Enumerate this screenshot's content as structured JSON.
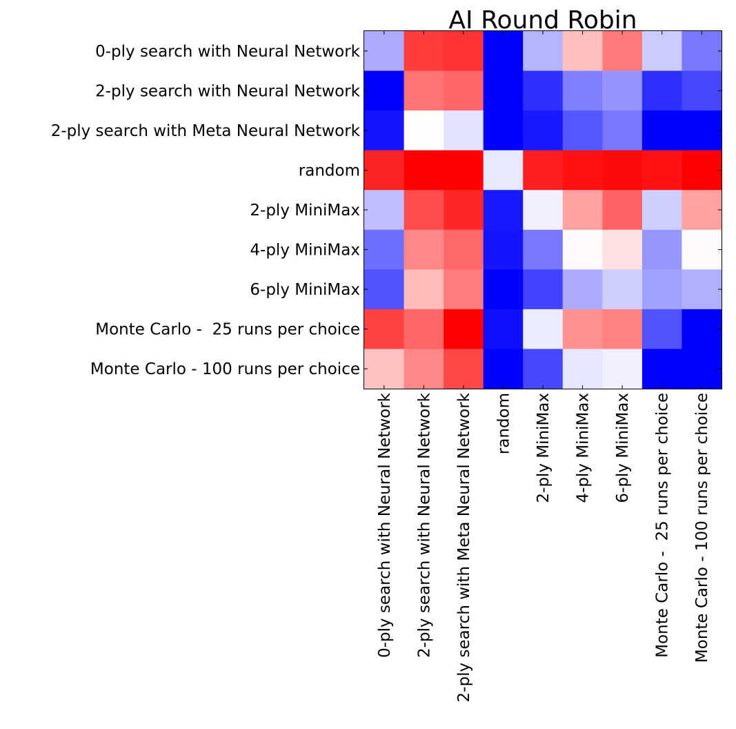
{
  "chart_data": {
    "type": "heatmap",
    "title": "AI Round Robin",
    "colormap": "bwr",
    "color_low": "#0000ff",
    "color_mid": "#ffffff",
    "color_high": "#ff0000",
    "vmin": -1,
    "vmax": 1,
    "grid": false,
    "row_labels": [
      "0-ply search with Neural Network",
      "2-ply search with Neural Network",
      "2-ply search with Meta Neural Network",
      "random",
      "2-ply MiniMax",
      "4-ply MiniMax",
      "6-ply MiniMax",
      "Monte Carlo -  25 runs per choice",
      "Monte Carlo - 100 runs per choice"
    ],
    "col_labels": [
      "0-ply search with Neural Network",
      "2-ply search with Neural Network",
      "2-ply search with Meta Neural Network",
      "random",
      "2-ply MiniMax",
      "4-ply MiniMax",
      "6-ply MiniMax",
      "Monte Carlo -  25 runs per choice",
      "Monte Carlo - 100 runs per choice"
    ],
    "values": [
      [
        -0.33,
        0.76,
        0.8,
        -1.0,
        -0.29,
        0.25,
        0.52,
        -0.2,
        -0.53
      ],
      [
        -1.0,
        0.55,
        0.6,
        -1.0,
        -0.82,
        -0.5,
        -0.42,
        -0.82,
        -0.72
      ],
      [
        -0.92,
        0.01,
        -0.11,
        -1.0,
        -0.9,
        -0.66,
        -0.53,
        -1.0,
        -1.0
      ],
      [
        0.86,
        1.0,
        1.0,
        -0.09,
        0.88,
        0.93,
        0.96,
        0.93,
        1.0
      ],
      [
        -0.25,
        0.7,
        0.85,
        -0.9,
        -0.06,
        0.37,
        0.61,
        -0.19,
        0.37
      ],
      [
        -0.57,
        0.47,
        0.59,
        -0.92,
        -0.53,
        0.02,
        0.12,
        -0.41,
        0.02
      ],
      [
        -0.68,
        0.27,
        0.51,
        -1.0,
        -0.74,
        -0.33,
        -0.19,
        -0.37,
        -0.31
      ],
      [
        0.74,
        0.6,
        1.0,
        -0.94,
        -0.08,
        0.43,
        0.49,
        -0.68,
        -1.0
      ],
      [
        0.24,
        0.47,
        0.72,
        -1.0,
        -0.72,
        -0.1,
        -0.06,
        -1.0,
        -1.0
      ]
    ]
  }
}
